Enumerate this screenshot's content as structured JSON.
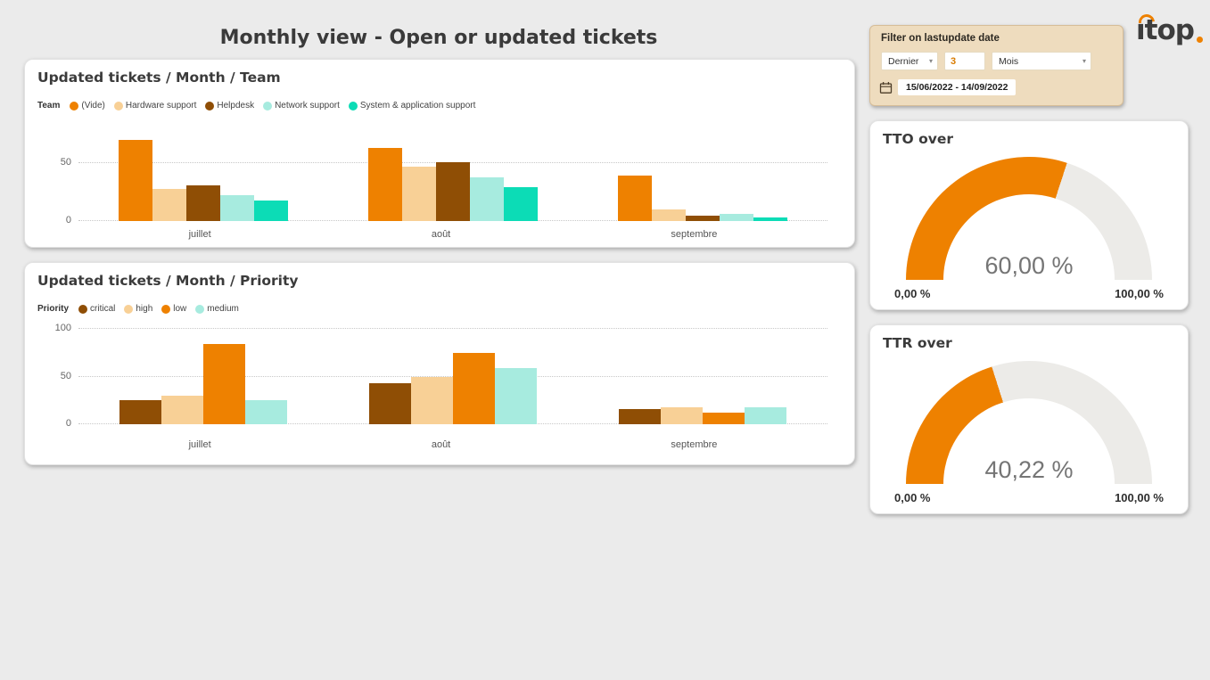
{
  "page": {
    "title": "Monthly view - Open or updated tickets"
  },
  "logo": {
    "text": "ıtop"
  },
  "colors": {
    "accent": "#ee8100",
    "gauge_track": "#ecebe8"
  },
  "filter": {
    "title": "Filter on lastupdate date",
    "interval_select": "Dernier",
    "count_input": "3",
    "unit_select": "Mois",
    "date_range": "15/06/2022 - 14/09/2022"
  },
  "chart_data": [
    {
      "type": "bar",
      "title": "Updated tickets / Month / Team",
      "legend_title": "Team",
      "legend_position": "top",
      "grid": "dotted-horizontal",
      "categories": [
        "juillet",
        "août",
        "septembre"
      ],
      "series": [
        {
          "name": "(Vide)",
          "color": "#ee8100",
          "values": [
            70,
            63,
            39
          ]
        },
        {
          "name": "Hardware support",
          "color": "#f8d096",
          "values": [
            28,
            47,
            10
          ]
        },
        {
          "name": "Helpdesk",
          "color": "#8f4e05",
          "values": [
            31,
            51,
            5
          ]
        },
        {
          "name": "Network support",
          "color": "#a7ebdf",
          "values": [
            22,
            38,
            6
          ]
        },
        {
          "name": "System & application support",
          "color": "#0cdcb6",
          "values": [
            18,
            29,
            3
          ]
        }
      ],
      "yticks": [
        0,
        50
      ],
      "ymax": 76,
      "xlabel": "",
      "ylabel": ""
    },
    {
      "type": "bar",
      "title": "Updated tickets / Month / Priority",
      "legend_title": "Priority",
      "legend_position": "top",
      "grid": "dotted-horizontal",
      "categories": [
        "juillet",
        "août",
        "septembre"
      ],
      "series": [
        {
          "name": "critical",
          "color": "#8f4e05",
          "values": [
            25,
            43,
            16
          ]
        },
        {
          "name": "high",
          "color": "#f8d096",
          "values": [
            30,
            50,
            18
          ]
        },
        {
          "name": "low",
          "color": "#ee8100",
          "values": [
            84,
            75,
            12
          ]
        },
        {
          "name": "medium",
          "color": "#a7ebdf",
          "values": [
            25,
            59,
            18
          ]
        }
      ],
      "yticks": [
        0,
        50,
        100
      ],
      "ymax": 102,
      "xlabel": "",
      "ylabel": ""
    },
    {
      "type": "gauge",
      "title": "TTO over",
      "value": 60.0,
      "value_label": "60,00 %",
      "min": 0,
      "max": 100,
      "min_label": "0,00 %",
      "max_label": "100,00 %"
    },
    {
      "type": "gauge",
      "title": "TTR over",
      "value": 40.22,
      "value_label": "40,22 %",
      "min": 0,
      "max": 100,
      "min_label": "0,00 %",
      "max_label": "100,00 %"
    }
  ]
}
